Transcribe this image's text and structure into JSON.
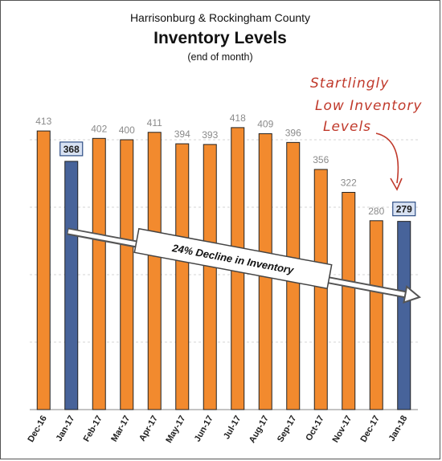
{
  "header": {
    "line1": "Harrisonburg & Rockingham County",
    "line2": "Inventory Levels",
    "line3": "(end of month)"
  },
  "annotation": {
    "line1": "Startlingly",
    "line2": "Low Inventory",
    "line3": "Levels"
  },
  "trend": {
    "label": "24% Decline in Inventory"
  },
  "colors": {
    "orange": "#F28A2E",
    "blue": "#47639A",
    "annotation_red": "#C0392B"
  },
  "chart_data": {
    "type": "bar",
    "title": "Inventory Levels",
    "subtitle": "(end of month)",
    "categories": [
      "Dec-16",
      "Jan-17",
      "Feb-17",
      "Mar-17",
      "Apr-17",
      "May-17",
      "Jun-17",
      "Jul-17",
      "Aug-17",
      "Sep-17",
      "Oct-17",
      "Nov-17",
      "Dec-17",
      "Jan-18"
    ],
    "values": [
      413,
      368,
      402,
      400,
      411,
      394,
      393,
      418,
      409,
      396,
      356,
      322,
      280,
      279
    ],
    "highlighted": [
      "Jan-17",
      "Jan-18"
    ],
    "ylim": [
      0,
      500
    ],
    "grid": true,
    "legend": "none"
  }
}
